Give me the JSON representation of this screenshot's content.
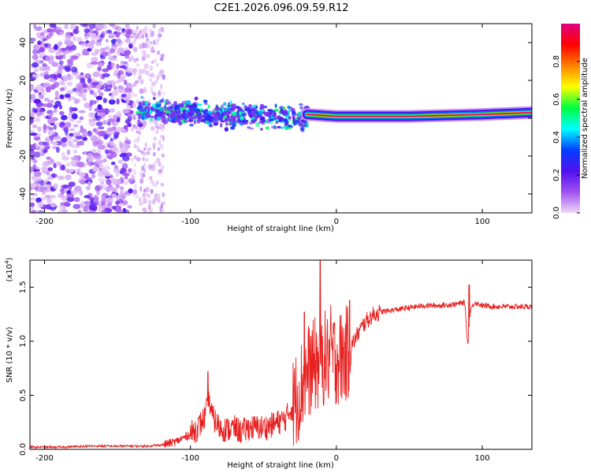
{
  "title": "C2E1.2026.096.09.59.R12",
  "chart_data": [
    {
      "type": "heatmap",
      "name": "spectrogram",
      "xlabel": "Height of straight line (km)",
      "ylabel": "Frequency (Hz)",
      "xlim": [
        -210,
        134
      ],
      "ylim": [
        -50,
        50
      ],
      "xticks": [
        -200,
        -100,
        0,
        100
      ],
      "yticks": [
        -40,
        -20,
        0,
        20,
        40
      ],
      "colorbar": {
        "label": "Normalized spectral amplitude",
        "range": [
          0.0,
          1.0
        ],
        "ticks": [
          0.0,
          0.2,
          0.4,
          0.6,
          0.8
        ],
        "tick_labels": [
          "0.0",
          "0.2",
          "0.4",
          "0.6",
          "0.8"
        ],
        "colors": [
          "#f0d8f8",
          "#a050f0",
          "#5010f0",
          "#0040ff",
          "#00ffff",
          "#00ff40",
          "#ffff00",
          "#ff8000",
          "#ff0000",
          "#e00080"
        ]
      },
      "regions": [
        {
          "x": [
            -210,
            -140
          ],
          "y": [
            -50,
            50
          ],
          "amplitude": [
            0.02,
            0.25
          ],
          "note": "broadband noise"
        },
        {
          "x": [
            -140,
            -118
          ],
          "y": [
            -50,
            50
          ],
          "amplitude": [
            0.01,
            0.08
          ],
          "note": "faint noise"
        },
        {
          "x": [
            -136,
            -20
          ],
          "y": [
            -8,
            12
          ],
          "amplitude": [
            0.15,
            0.6
          ],
          "note": "scattered signal"
        },
        {
          "x": [
            -20,
            134
          ],
          "y": [
            0,
            5
          ],
          "amplitude": [
            0.8,
            1.0
          ],
          "note": "carrier line"
        }
      ],
      "carrier_line": {
        "x": [
          -20,
          0,
          50,
          100,
          134
        ],
        "y": [
          2,
          1,
          1,
          2,
          3
        ]
      }
    },
    {
      "type": "line",
      "name": "snr",
      "xlabel": "Height of straight line (km)",
      "ylabel": "SNR (10 * v/v)",
      "multiplier": "(x10",
      "multiplier_exp": "4",
      "xlim": [
        -210,
        134
      ],
      "ylim": [
        0,
        1.75
      ],
      "xticks": [
        -200,
        -100,
        0,
        100
      ],
      "yticks": [
        0.0,
        0.5,
        1.0,
        1.5
      ],
      "ytick_labels": [
        "0.0",
        "0.5",
        "1.0",
        "1.5"
      ],
      "color": "#e82020",
      "series": [
        {
          "name": "SNR",
          "x": [
            -210,
            -190,
            -170,
            -150,
            -130,
            -120,
            -110,
            -100,
            -95,
            -90,
            -87,
            -85,
            -80,
            -75,
            -70,
            -65,
            -60,
            -55,
            -50,
            -45,
            -40,
            -35,
            -30,
            -25,
            -20,
            -18,
            -16,
            -14,
            -12,
            -10,
            -8,
            -6,
            -4,
            -2,
            0,
            4,
            8,
            12,
            16,
            20,
            25,
            30,
            40,
            50,
            60,
            70,
            80,
            85,
            88,
            90,
            92,
            95,
            100,
            110,
            120,
            134
          ],
          "y": [
            0.02,
            0.02,
            0.03,
            0.03,
            0.03,
            0.04,
            0.07,
            0.14,
            0.2,
            0.3,
            0.45,
            0.3,
            0.2,
            0.18,
            0.2,
            0.16,
            0.2,
            0.2,
            0.2,
            0.22,
            0.25,
            0.28,
            0.4,
            0.55,
            0.7,
            0.75,
            0.75,
            0.8,
            0.78,
            0.8,
            0.85,
            0.82,
            0.9,
            0.85,
            0.85,
            0.85,
            0.9,
            1.0,
            1.1,
            1.18,
            1.24,
            1.27,
            1.29,
            1.31,
            1.33,
            1.33,
            1.34,
            1.35,
            1.36,
            0.96,
            1.3,
            1.36,
            1.33,
            1.32,
            1.32,
            1.32
          ]
        }
      ],
      "spikes": [
        {
          "x": -11,
          "y": 1.76
        },
        {
          "x": -22,
          "y": 1.27
        },
        {
          "x": -88,
          "y": 0.72
        },
        {
          "x": 9,
          "y": 1.38
        },
        {
          "x": 91,
          "y": 1.52
        }
      ]
    }
  ]
}
